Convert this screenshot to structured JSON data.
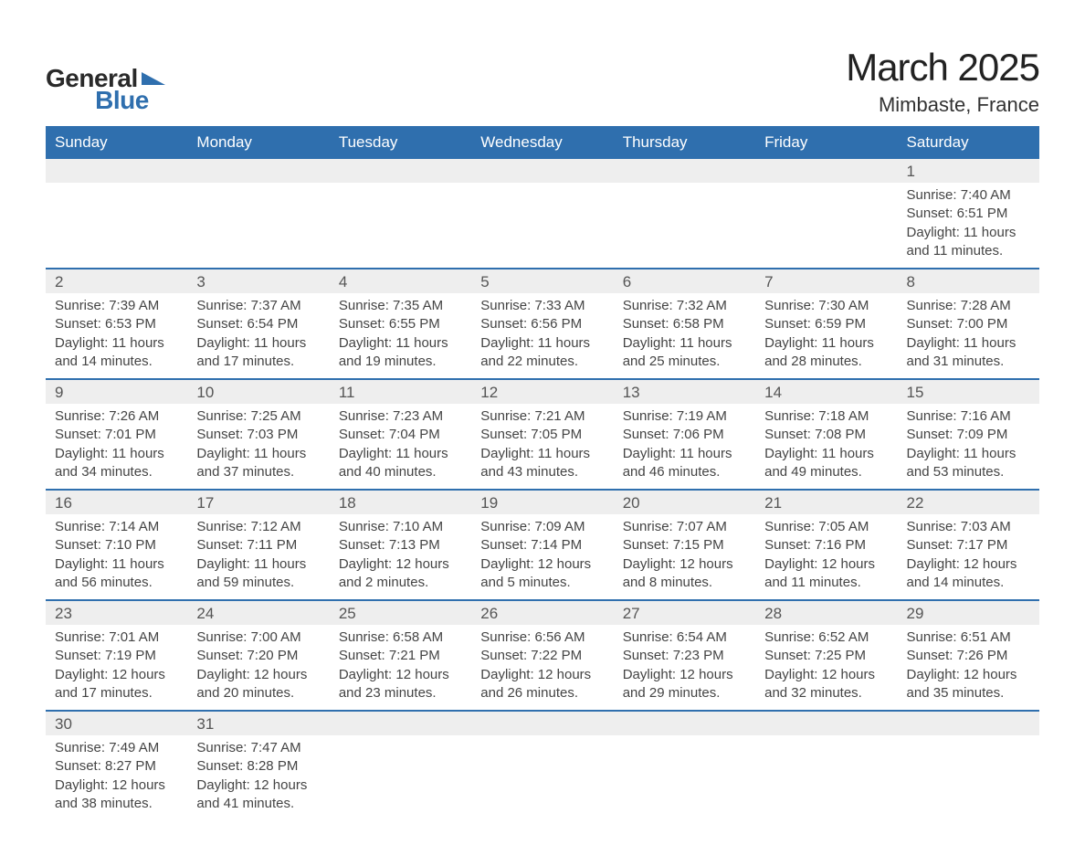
{
  "brand": {
    "word1": "General",
    "word2": "Blue",
    "accent_color": "#2f6fae"
  },
  "title": "March 2025",
  "location": "Mimbaste, France",
  "colors": {
    "header_bg": "#2f6fae",
    "header_text": "#ffffff",
    "daynum_bg": "#eeeeee",
    "border": "#2f6fae",
    "body_text": "#444444",
    "page_bg": "#ffffff"
  },
  "weekdays": [
    "Sunday",
    "Monday",
    "Tuesday",
    "Wednesday",
    "Thursday",
    "Friday",
    "Saturday"
  ],
  "weeks": [
    [
      {
        "empty": true
      },
      {
        "empty": true
      },
      {
        "empty": true
      },
      {
        "empty": true
      },
      {
        "empty": true
      },
      {
        "empty": true
      },
      {
        "day": "1",
        "sunrise": "Sunrise: 7:40 AM",
        "sunset": "Sunset: 6:51 PM",
        "daylight1": "Daylight: 11 hours",
        "daylight2": "and 11 minutes."
      }
    ],
    [
      {
        "day": "2",
        "sunrise": "Sunrise: 7:39 AM",
        "sunset": "Sunset: 6:53 PM",
        "daylight1": "Daylight: 11 hours",
        "daylight2": "and 14 minutes."
      },
      {
        "day": "3",
        "sunrise": "Sunrise: 7:37 AM",
        "sunset": "Sunset: 6:54 PM",
        "daylight1": "Daylight: 11 hours",
        "daylight2": "and 17 minutes."
      },
      {
        "day": "4",
        "sunrise": "Sunrise: 7:35 AM",
        "sunset": "Sunset: 6:55 PM",
        "daylight1": "Daylight: 11 hours",
        "daylight2": "and 19 minutes."
      },
      {
        "day": "5",
        "sunrise": "Sunrise: 7:33 AM",
        "sunset": "Sunset: 6:56 PM",
        "daylight1": "Daylight: 11 hours",
        "daylight2": "and 22 minutes."
      },
      {
        "day": "6",
        "sunrise": "Sunrise: 7:32 AM",
        "sunset": "Sunset: 6:58 PM",
        "daylight1": "Daylight: 11 hours",
        "daylight2": "and 25 minutes."
      },
      {
        "day": "7",
        "sunrise": "Sunrise: 7:30 AM",
        "sunset": "Sunset: 6:59 PM",
        "daylight1": "Daylight: 11 hours",
        "daylight2": "and 28 minutes."
      },
      {
        "day": "8",
        "sunrise": "Sunrise: 7:28 AM",
        "sunset": "Sunset: 7:00 PM",
        "daylight1": "Daylight: 11 hours",
        "daylight2": "and 31 minutes."
      }
    ],
    [
      {
        "day": "9",
        "sunrise": "Sunrise: 7:26 AM",
        "sunset": "Sunset: 7:01 PM",
        "daylight1": "Daylight: 11 hours",
        "daylight2": "and 34 minutes."
      },
      {
        "day": "10",
        "sunrise": "Sunrise: 7:25 AM",
        "sunset": "Sunset: 7:03 PM",
        "daylight1": "Daylight: 11 hours",
        "daylight2": "and 37 minutes."
      },
      {
        "day": "11",
        "sunrise": "Sunrise: 7:23 AM",
        "sunset": "Sunset: 7:04 PM",
        "daylight1": "Daylight: 11 hours",
        "daylight2": "and 40 minutes."
      },
      {
        "day": "12",
        "sunrise": "Sunrise: 7:21 AM",
        "sunset": "Sunset: 7:05 PM",
        "daylight1": "Daylight: 11 hours",
        "daylight2": "and 43 minutes."
      },
      {
        "day": "13",
        "sunrise": "Sunrise: 7:19 AM",
        "sunset": "Sunset: 7:06 PM",
        "daylight1": "Daylight: 11 hours",
        "daylight2": "and 46 minutes."
      },
      {
        "day": "14",
        "sunrise": "Sunrise: 7:18 AM",
        "sunset": "Sunset: 7:08 PM",
        "daylight1": "Daylight: 11 hours",
        "daylight2": "and 49 minutes."
      },
      {
        "day": "15",
        "sunrise": "Sunrise: 7:16 AM",
        "sunset": "Sunset: 7:09 PM",
        "daylight1": "Daylight: 11 hours",
        "daylight2": "and 53 minutes."
      }
    ],
    [
      {
        "day": "16",
        "sunrise": "Sunrise: 7:14 AM",
        "sunset": "Sunset: 7:10 PM",
        "daylight1": "Daylight: 11 hours",
        "daylight2": "and 56 minutes."
      },
      {
        "day": "17",
        "sunrise": "Sunrise: 7:12 AM",
        "sunset": "Sunset: 7:11 PM",
        "daylight1": "Daylight: 11 hours",
        "daylight2": "and 59 minutes."
      },
      {
        "day": "18",
        "sunrise": "Sunrise: 7:10 AM",
        "sunset": "Sunset: 7:13 PM",
        "daylight1": "Daylight: 12 hours",
        "daylight2": "and 2 minutes."
      },
      {
        "day": "19",
        "sunrise": "Sunrise: 7:09 AM",
        "sunset": "Sunset: 7:14 PM",
        "daylight1": "Daylight: 12 hours",
        "daylight2": "and 5 minutes."
      },
      {
        "day": "20",
        "sunrise": "Sunrise: 7:07 AM",
        "sunset": "Sunset: 7:15 PM",
        "daylight1": "Daylight: 12 hours",
        "daylight2": "and 8 minutes."
      },
      {
        "day": "21",
        "sunrise": "Sunrise: 7:05 AM",
        "sunset": "Sunset: 7:16 PM",
        "daylight1": "Daylight: 12 hours",
        "daylight2": "and 11 minutes."
      },
      {
        "day": "22",
        "sunrise": "Sunrise: 7:03 AM",
        "sunset": "Sunset: 7:17 PM",
        "daylight1": "Daylight: 12 hours",
        "daylight2": "and 14 minutes."
      }
    ],
    [
      {
        "day": "23",
        "sunrise": "Sunrise: 7:01 AM",
        "sunset": "Sunset: 7:19 PM",
        "daylight1": "Daylight: 12 hours",
        "daylight2": "and 17 minutes."
      },
      {
        "day": "24",
        "sunrise": "Sunrise: 7:00 AM",
        "sunset": "Sunset: 7:20 PM",
        "daylight1": "Daylight: 12 hours",
        "daylight2": "and 20 minutes."
      },
      {
        "day": "25",
        "sunrise": "Sunrise: 6:58 AM",
        "sunset": "Sunset: 7:21 PM",
        "daylight1": "Daylight: 12 hours",
        "daylight2": "and 23 minutes."
      },
      {
        "day": "26",
        "sunrise": "Sunrise: 6:56 AM",
        "sunset": "Sunset: 7:22 PM",
        "daylight1": "Daylight: 12 hours",
        "daylight2": "and 26 minutes."
      },
      {
        "day": "27",
        "sunrise": "Sunrise: 6:54 AM",
        "sunset": "Sunset: 7:23 PM",
        "daylight1": "Daylight: 12 hours",
        "daylight2": "and 29 minutes."
      },
      {
        "day": "28",
        "sunrise": "Sunrise: 6:52 AM",
        "sunset": "Sunset: 7:25 PM",
        "daylight1": "Daylight: 12 hours",
        "daylight2": "and 32 minutes."
      },
      {
        "day": "29",
        "sunrise": "Sunrise: 6:51 AM",
        "sunset": "Sunset: 7:26 PM",
        "daylight1": "Daylight: 12 hours",
        "daylight2": "and 35 minutes."
      }
    ],
    [
      {
        "day": "30",
        "sunrise": "Sunrise: 7:49 AM",
        "sunset": "Sunset: 8:27 PM",
        "daylight1": "Daylight: 12 hours",
        "daylight2": "and 38 minutes."
      },
      {
        "day": "31",
        "sunrise": "Sunrise: 7:47 AM",
        "sunset": "Sunset: 8:28 PM",
        "daylight1": "Daylight: 12 hours",
        "daylight2": "and 41 minutes."
      },
      {
        "empty": true,
        "trailing": true
      },
      {
        "empty": true,
        "trailing": true
      },
      {
        "empty": true,
        "trailing": true
      },
      {
        "empty": true,
        "trailing": true
      },
      {
        "empty": true,
        "trailing": true
      }
    ]
  ]
}
